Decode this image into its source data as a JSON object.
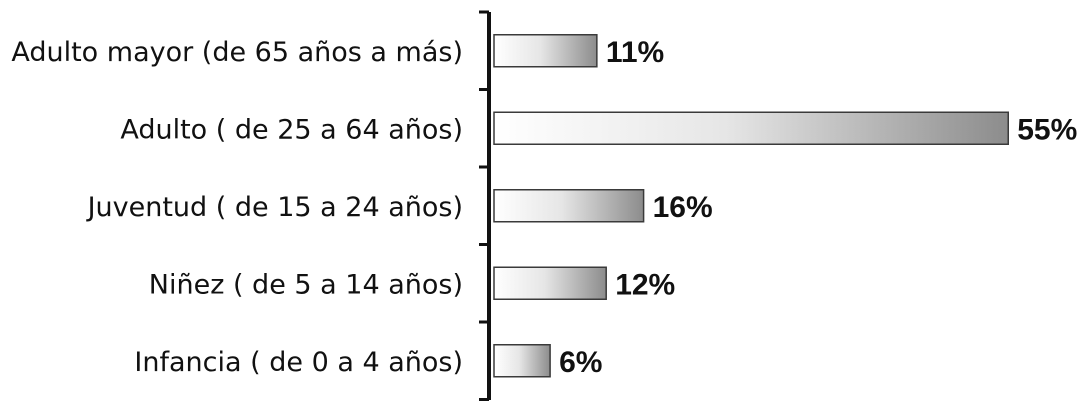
{
  "chart_data": {
    "type": "bar",
    "orientation": "horizontal",
    "categories": [
      "Adulto mayor (de 65 años a más)",
      "Adulto ( de 25 a 64 años)",
      "Juventud ( de 15 a 24 años)",
      "Niñez ( de 5 a 14 años)",
      "Infancia ( de 0 a 4 años)"
    ],
    "values": [
      11,
      55,
      16,
      12,
      6
    ],
    "value_labels": [
      "11%",
      "55%",
      "16%",
      "12%",
      "6%"
    ],
    "unit": "%",
    "xlim": [
      0,
      55
    ],
    "grid": false,
    "legend": "none",
    "colors": {
      "bar_light": "#ffffff",
      "bar_dark": "#8c8c8c",
      "bar_edge": "#3a3a3a",
      "axis": "#111111"
    }
  }
}
